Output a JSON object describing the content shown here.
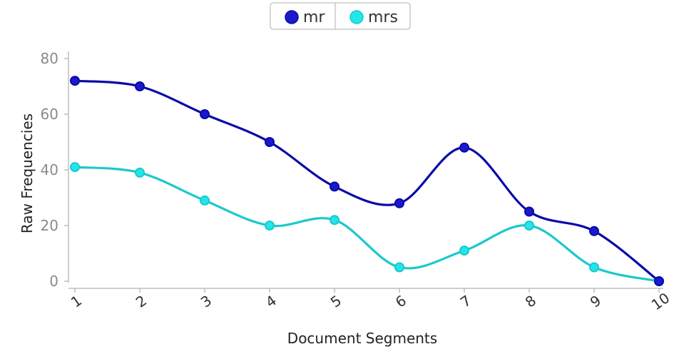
{
  "chart_data": {
    "type": "line",
    "categories": [
      "1",
      "2",
      "3",
      "4",
      "5",
      "6",
      "7",
      "8",
      "9",
      "10"
    ],
    "series": [
      {
        "name": "mr",
        "values": [
          72,
          70,
          60,
          50,
          34,
          28,
          48,
          25,
          18,
          0
        ],
        "color": "#0a0aa8",
        "point_color": "#1a1acc"
      },
      {
        "name": "mrs",
        "values": [
          41,
          39,
          29,
          20,
          22,
          5,
          11,
          20,
          5,
          0
        ],
        "color": "#1cc8cc",
        "point_color": "#22e6ea"
      }
    ],
    "xlabel": "Document Segments",
    "ylabel": "Raw Frequencies",
    "ylim": [
      0,
      80
    ],
    "yticks": [
      "0",
      "20",
      "40",
      "60",
      "80"
    ],
    "grid": false,
    "legend": "top-center"
  }
}
